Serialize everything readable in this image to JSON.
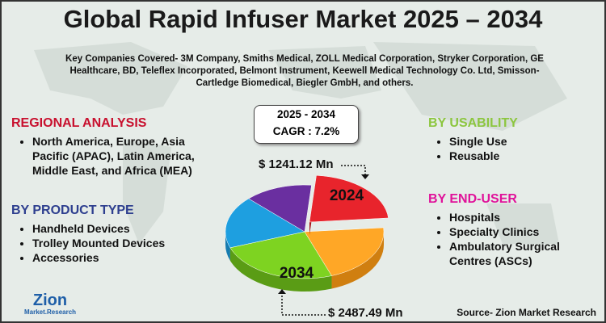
{
  "header": {
    "title": "Global Rapid Infuser Market 2025 – 2034",
    "companies": "Key Companies Covered- 3M Company, Smiths Medical, ZOLL Medical Corporation, Stryker Corporation, GE Healthcare, BD, Teleflex Incorporated, Belmont Instrument, Keewell Medical Technology Co. Ltd, Smisson-Cartledge Biomedical, Biegler GmbH, and others."
  },
  "cagr": {
    "period": "2025 - 2034",
    "label": "CAGR : 7.2%"
  },
  "slices": [
    {
      "label": "2024"
    },
    {
      "label": "2034"
    }
  ],
  "callouts": [
    "$ 1241.12 Mn",
    "$ 2487.49 Mn"
  ],
  "sections": [
    {
      "title": "REGIONAL ANALYSIS",
      "items": [
        "North America, Europe, Asia Pacific (APAC), Latin America, Middle East, and Africa (MEA)"
      ]
    },
    {
      "title": "BY PRODUCT TYPE",
      "items": [
        "Handheld Devices",
        "Trolley Mounted Devices",
        "Accessories"
      ]
    },
    {
      "title": "BY USABILITY",
      "items": [
        "Single Use",
        "Reusable"
      ]
    },
    {
      "title": "BY END-USER",
      "items": [
        "Hospitals",
        "Specialty Clinics",
        "Ambulatory Surgical Centres (ASCs)"
      ]
    }
  ],
  "logo": {
    "name": "Zion",
    "sub": "Market.Research"
  },
  "source": "Source- Zion Market Research"
}
